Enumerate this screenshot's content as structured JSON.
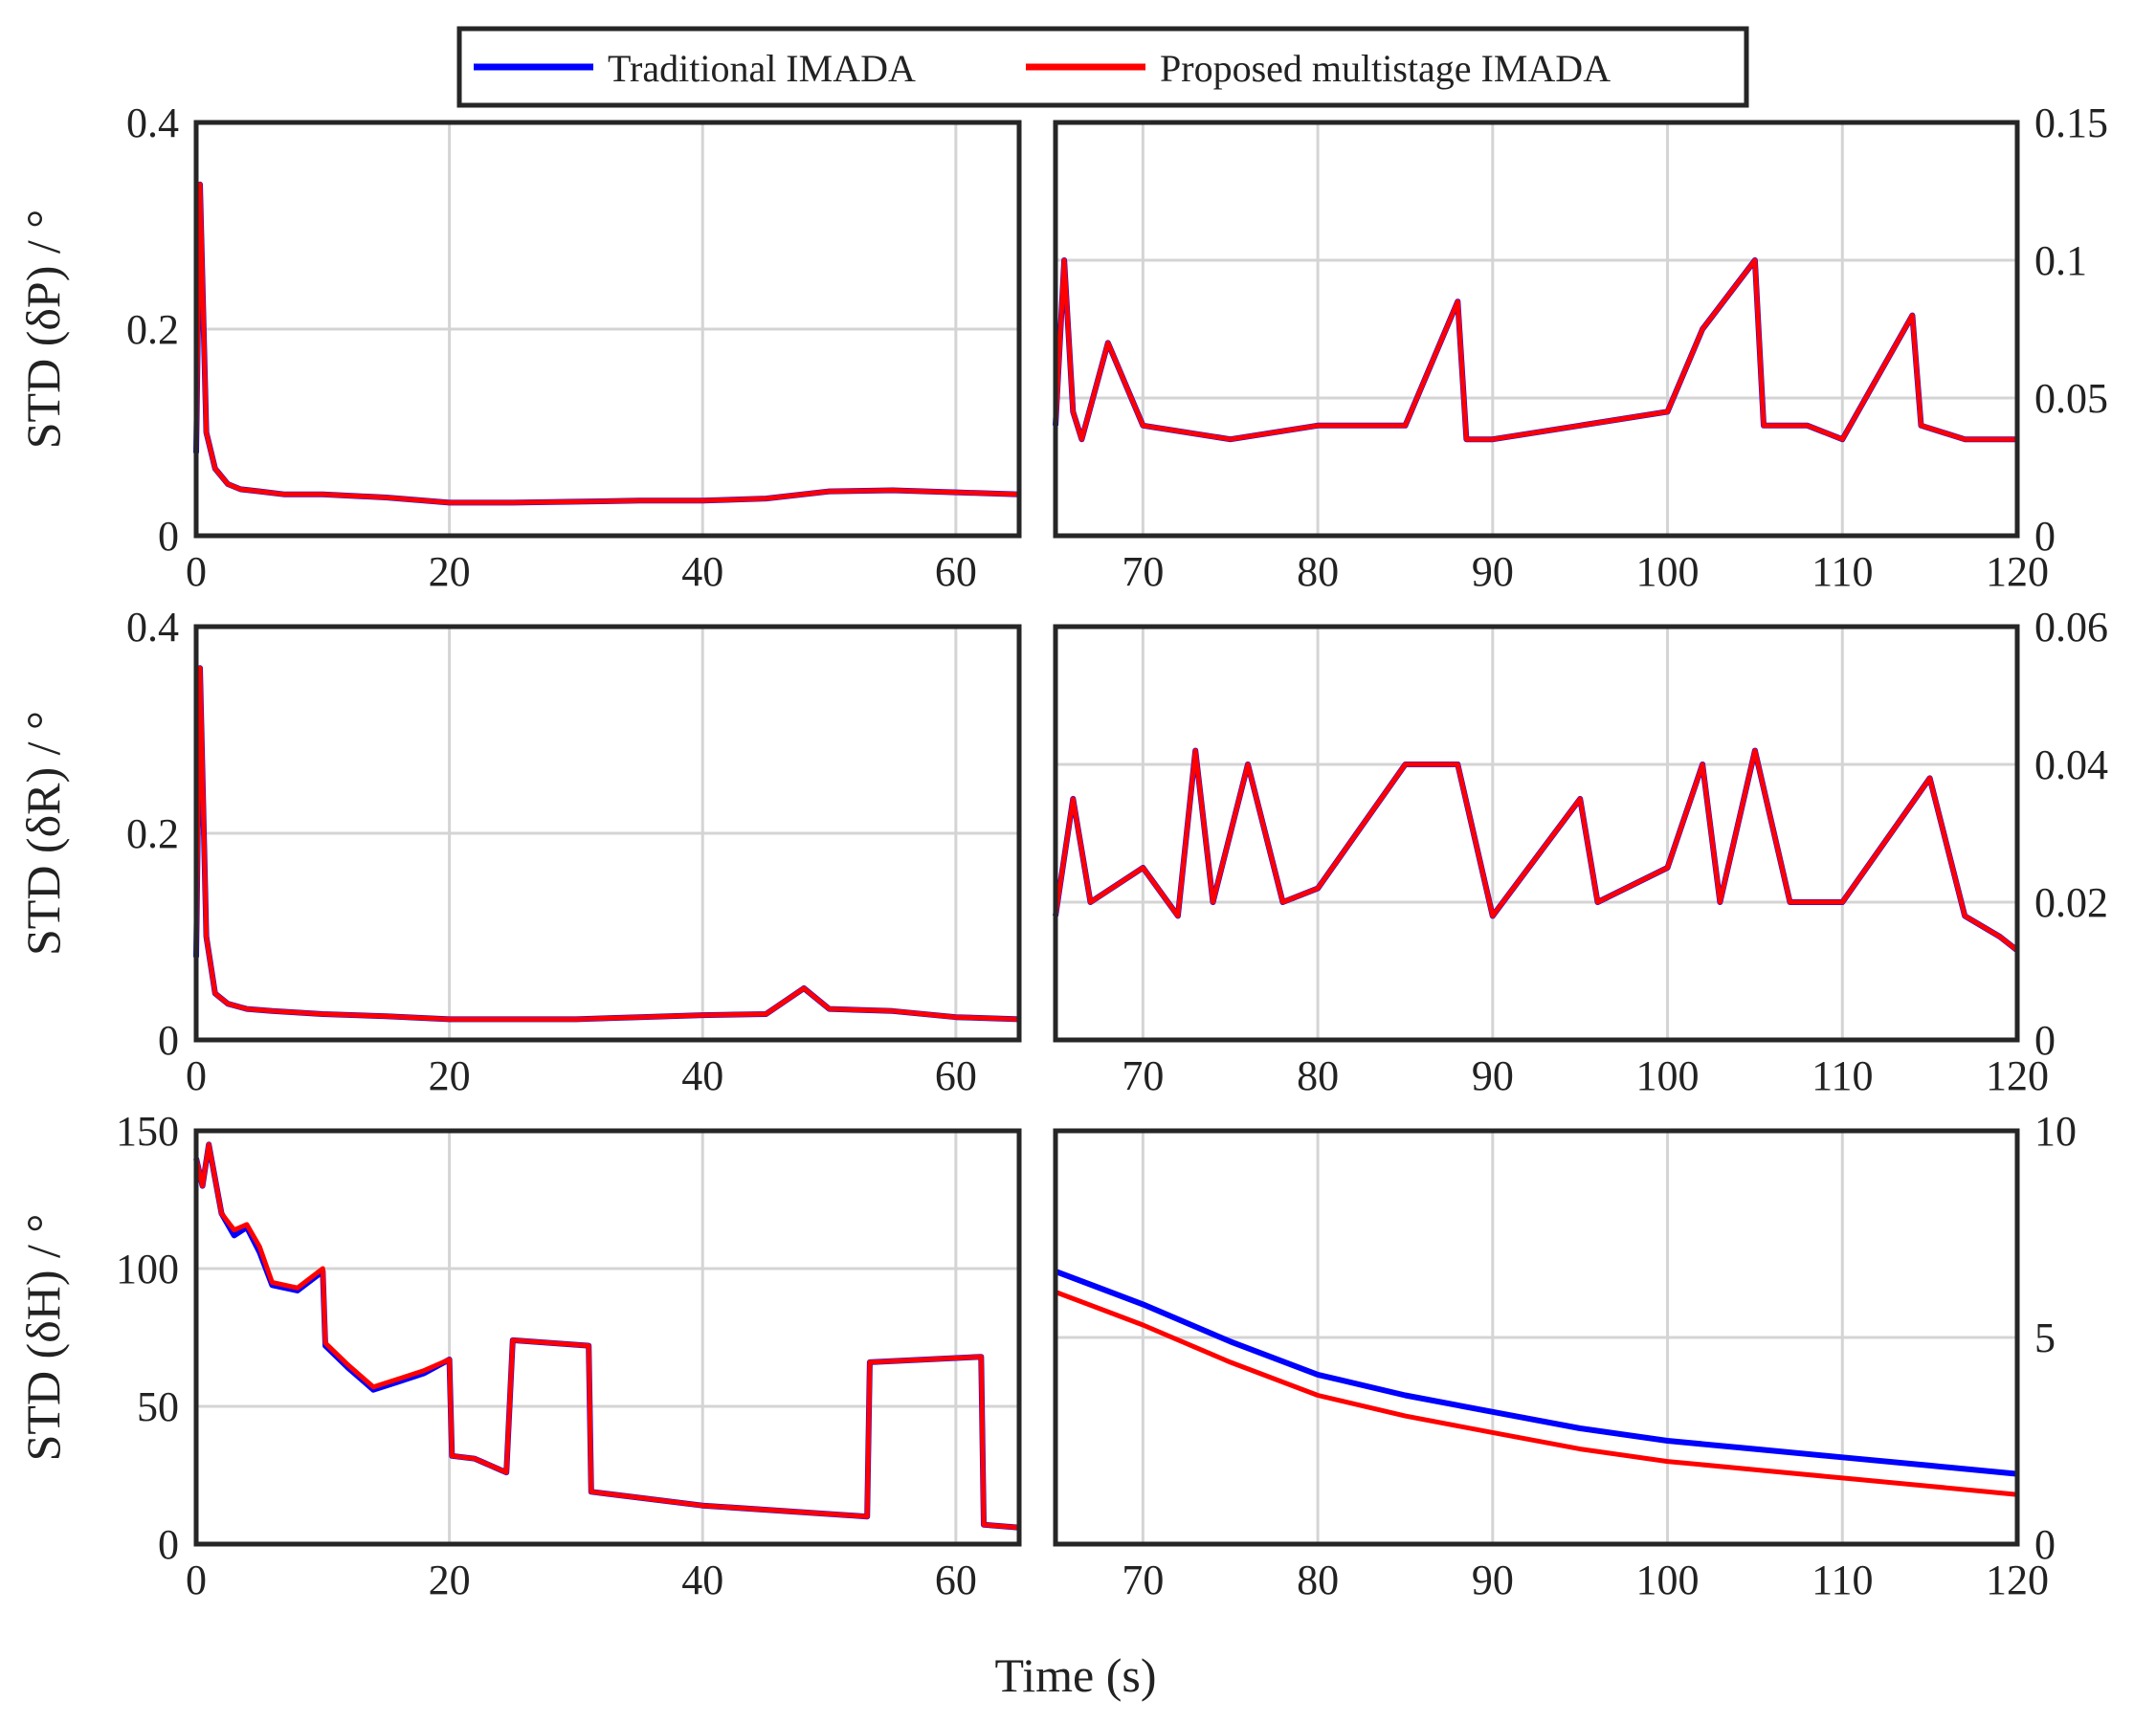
{
  "chart_data": {
    "type": "line",
    "legend": {
      "position": "top-center",
      "entries": [
        {
          "name": "Traditional IMADA",
          "color": "#0000ff"
        },
        {
          "name": "Proposed multistage IMADA",
          "color": "#ff0000"
        }
      ]
    },
    "xlabel": "Time (s)",
    "rows": [
      {
        "ylabel": "STD (δP) / °",
        "left": {
          "xlim": [
            0,
            65
          ],
          "ylim": [
            0,
            0.4
          ],
          "xticks": [
            "0",
            "20",
            "40",
            "60"
          ],
          "xtick_values": [
            0,
            20,
            40,
            60
          ],
          "yticks": [
            "0",
            "0.2",
            "0.4"
          ],
          "ytick_values": [
            0,
            0.2,
            0.4
          ],
          "series": [
            {
              "name": "Traditional IMADA",
              "x": [
                0,
                0.3,
                0.8,
                1.5,
                2.5,
                3.5,
                5,
                7,
                10,
                15,
                20,
                25,
                30,
                35,
                40,
                45,
                50,
                55,
                60,
                65
              ],
              "y": [
                0.08,
                0.34,
                0.1,
                0.065,
                0.05,
                0.045,
                0.043,
                0.04,
                0.04,
                0.037,
                0.032,
                0.032,
                0.033,
                0.034,
                0.034,
                0.036,
                0.043,
                0.044,
                0.042,
                0.04
              ]
            },
            {
              "name": "Proposed multistage IMADA",
              "x": [
                0,
                0.3,
                0.8,
                1.5,
                2.5,
                3.5,
                5,
                7,
                10,
                15,
                20,
                25,
                30,
                35,
                40,
                45,
                50,
                55,
                60,
                65
              ],
              "y": [
                0.08,
                0.34,
                0.1,
                0.065,
                0.05,
                0.045,
                0.043,
                0.04,
                0.04,
                0.037,
                0.032,
                0.032,
                0.033,
                0.034,
                0.034,
                0.036,
                0.043,
                0.044,
                0.042,
                0.04
              ]
            }
          ]
        },
        "right": {
          "xlim": [
            65,
            120
          ],
          "ylim": [
            0,
            0.15
          ],
          "xticks": [
            "70",
            "80",
            "90",
            "100",
            "110",
            "120"
          ],
          "xtick_values": [
            70,
            80,
            90,
            100,
            110,
            120
          ],
          "yticks": [
            "0",
            "0.05",
            "0.1",
            "0.15"
          ],
          "ytick_values": [
            0,
            0.05,
            0.1,
            0.15
          ],
          "series": [
            {
              "name": "Traditional IMADA",
              "x": [
                65,
                65.5,
                66,
                66.5,
                68,
                70,
                75,
                80,
                85,
                88,
                88.5,
                90,
                95,
                100,
                102,
                105,
                105.5,
                108,
                110,
                114,
                114.5,
                117,
                120
              ],
              "y": [
                0.04,
                0.1,
                0.045,
                0.035,
                0.07,
                0.04,
                0.035,
                0.04,
                0.04,
                0.085,
                0.035,
                0.035,
                0.04,
                0.045,
                0.075,
                0.1,
                0.04,
                0.04,
                0.035,
                0.08,
                0.04,
                0.035,
                0.035
              ]
            },
            {
              "name": "Proposed multistage IMADA",
              "x": [
                65,
                65.5,
                66,
                66.5,
                68,
                70,
                75,
                80,
                85,
                88,
                88.5,
                90,
                95,
                100,
                102,
                105,
                105.5,
                108,
                110,
                114,
                114.5,
                117,
                120
              ],
              "y": [
                0.04,
                0.1,
                0.045,
                0.035,
                0.07,
                0.04,
                0.035,
                0.04,
                0.04,
                0.085,
                0.035,
                0.035,
                0.04,
                0.045,
                0.075,
                0.1,
                0.04,
                0.04,
                0.035,
                0.08,
                0.04,
                0.035,
                0.035
              ]
            }
          ]
        }
      },
      {
        "ylabel": "STD (δR) / °",
        "left": {
          "xlim": [
            0,
            65
          ],
          "ylim": [
            0,
            0.4
          ],
          "xticks": [
            "0",
            "20",
            "40",
            "60"
          ],
          "xtick_values": [
            0,
            20,
            40,
            60
          ],
          "yticks": [
            "0",
            "0.2",
            "0.4"
          ],
          "ytick_values": [
            0,
            0.2,
            0.4
          ],
          "series": [
            {
              "name": "Traditional IMADA",
              "x": [
                0,
                0.3,
                0.8,
                1.5,
                2.5,
                4,
                6,
                10,
                15,
                20,
                25,
                30,
                35,
                40,
                45,
                48,
                50,
                55,
                60,
                65
              ],
              "y": [
                0.08,
                0.36,
                0.1,
                0.045,
                0.035,
                0.03,
                0.028,
                0.025,
                0.023,
                0.02,
                0.02,
                0.02,
                0.022,
                0.024,
                0.025,
                0.05,
                0.03,
                0.028,
                0.022,
                0.02
              ]
            },
            {
              "name": "Proposed multistage IMADA",
              "x": [
                0,
                0.3,
                0.8,
                1.5,
                2.5,
                4,
                6,
                10,
                15,
                20,
                25,
                30,
                35,
                40,
                45,
                48,
                50,
                55,
                60,
                65
              ],
              "y": [
                0.08,
                0.36,
                0.1,
                0.045,
                0.035,
                0.03,
                0.028,
                0.025,
                0.023,
                0.02,
                0.02,
                0.02,
                0.022,
                0.024,
                0.025,
                0.05,
                0.03,
                0.028,
                0.022,
                0.02
              ]
            }
          ]
        },
        "right": {
          "xlim": [
            65,
            120
          ],
          "ylim": [
            0,
            0.06
          ],
          "xticks": [
            "70",
            "80",
            "90",
            "100",
            "110",
            "120"
          ],
          "xtick_values": [
            70,
            80,
            90,
            100,
            110,
            120
          ],
          "yticks": [
            "0",
            "0.02",
            "0.04",
            "0.06"
          ],
          "ytick_values": [
            0,
            0.02,
            0.04,
            0.06
          ],
          "series": [
            {
              "name": "Traditional IMADA",
              "x": [
                65,
                66,
                67,
                70,
                72,
                73,
                74,
                76,
                78,
                80,
                85,
                88,
                90,
                95,
                96,
                100,
                102,
                103,
                105,
                107,
                110,
                115,
                117,
                119,
                120
              ],
              "y": [
                0.018,
                0.035,
                0.02,
                0.025,
                0.018,
                0.042,
                0.02,
                0.04,
                0.02,
                0.022,
                0.04,
                0.04,
                0.018,
                0.035,
                0.02,
                0.025,
                0.04,
                0.02,
                0.042,
                0.02,
                0.02,
                0.038,
                0.018,
                0.015,
                0.013
              ]
            },
            {
              "name": "Proposed multistage IMADA",
              "x": [
                65,
                66,
                67,
                70,
                72,
                73,
                74,
                76,
                78,
                80,
                85,
                88,
                90,
                95,
                96,
                100,
                102,
                103,
                105,
                107,
                110,
                115,
                117,
                119,
                120
              ],
              "y": [
                0.018,
                0.035,
                0.02,
                0.025,
                0.018,
                0.042,
                0.02,
                0.04,
                0.02,
                0.022,
                0.04,
                0.04,
                0.018,
                0.035,
                0.02,
                0.025,
                0.04,
                0.02,
                0.042,
                0.02,
                0.02,
                0.038,
                0.018,
                0.015,
                0.013
              ]
            }
          ]
        }
      },
      {
        "ylabel": "STD (δH) / °",
        "left": {
          "xlim": [
            0,
            65
          ],
          "ylim": [
            0,
            150
          ],
          "xticks": [
            "0",
            "20",
            "40",
            "60"
          ],
          "xtick_values": [
            0,
            20,
            40,
            60
          ],
          "yticks": [
            "0",
            "50",
            "100",
            "150"
          ],
          "ytick_values": [
            0,
            50,
            100,
            150
          ],
          "series": [
            {
              "name": "Traditional IMADA",
              "x": [
                0,
                0.5,
                1,
                2,
                3,
                4,
                5,
                6,
                8,
                10,
                10.2,
                12,
                14,
                16,
                18,
                20,
                20.2,
                22,
                24,
                24.5,
                25,
                28,
                31,
                31.2,
                40,
                53,
                53.2,
                62,
                62.2,
                65
              ],
              "y": [
                140,
                130,
                145,
                120,
                112,
                115,
                106,
                94,
                92,
                99,
                72,
                64,
                56,
                59,
                62,
                67,
                32,
                31,
                27,
                26,
                74,
                73,
                72,
                19,
                14,
                10,
                66,
                68,
                7,
                6
              ]
            },
            {
              "name": "Proposed multistage IMADA",
              "x": [
                0,
                0.5,
                1,
                2,
                3,
                4,
                5,
                6,
                8,
                10,
                10.2,
                12,
                14,
                16,
                18,
                20,
                20.2,
                22,
                24,
                24.5,
                25,
                28,
                31,
                31.2,
                40,
                53,
                53.2,
                62,
                62.2,
                65
              ],
              "y": [
                140,
                130,
                145,
                120,
                114,
                116,
                108,
                95,
                93,
                100,
                73,
                65,
                57,
                60,
                63,
                67,
                32,
                31,
                27,
                26,
                74,
                73,
                72,
                19,
                14,
                10,
                66,
                68,
                7,
                6
              ]
            }
          ]
        },
        "right": {
          "xlim": [
            65,
            120
          ],
          "ylim": [
            0,
            10
          ],
          "xticks": [
            "70",
            "80",
            "90",
            "100",
            "110",
            "120"
          ],
          "xtick_values": [
            70,
            80,
            90,
            100,
            110,
            120
          ],
          "yticks": [
            "0",
            "5",
            "10"
          ],
          "ytick_values": [
            0,
            5,
            10
          ],
          "series": [
            {
              "name": "Traditional IMADA",
              "x": [
                65,
                70,
                75,
                80,
                85,
                90,
                95,
                100,
                105,
                110,
                115,
                120
              ],
              "y": [
                6.6,
                5.8,
                4.9,
                4.1,
                3.6,
                3.2,
                2.8,
                2.5,
                2.3,
                2.1,
                1.9,
                1.7
              ]
            },
            {
              "name": "Proposed multistage IMADA",
              "x": [
                65,
                70,
                75,
                80,
                85,
                90,
                95,
                100,
                105,
                110,
                115,
                120
              ],
              "y": [
                6.1,
                5.3,
                4.4,
                3.6,
                3.1,
                2.7,
                2.3,
                2.0,
                1.8,
                1.6,
                1.4,
                1.2
              ]
            }
          ]
        }
      }
    ]
  }
}
